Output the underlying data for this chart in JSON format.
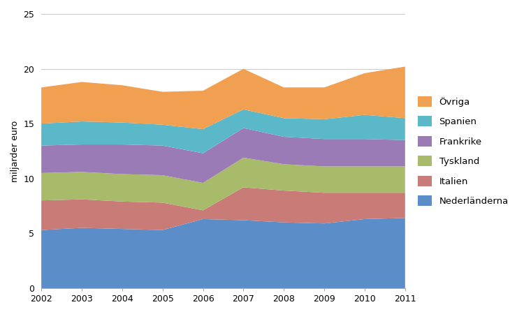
{
  "years": [
    2002,
    2003,
    2004,
    2005,
    2006,
    2007,
    2008,
    2009,
    2010,
    2011
  ],
  "series": {
    "Nederländerna": [
      5.3,
      5.5,
      5.4,
      5.3,
      6.3,
      6.2,
      6.0,
      5.9,
      6.3,
      6.4
    ],
    "Italien": [
      2.7,
      2.6,
      2.5,
      2.5,
      0.8,
      3.0,
      2.9,
      2.8,
      2.4,
      2.3
    ],
    "Tyskland": [
      2.5,
      2.5,
      2.5,
      2.5,
      2.5,
      2.7,
      2.4,
      2.4,
      2.4,
      2.4
    ],
    "Frankrike": [
      2.5,
      2.5,
      2.7,
      2.7,
      2.7,
      2.7,
      2.5,
      2.5,
      2.5,
      2.4
    ],
    "Spanien": [
      2.0,
      2.1,
      2.0,
      1.9,
      2.2,
      1.7,
      1.7,
      1.8,
      2.2,
      2.0
    ],
    "Övriga": [
      3.3,
      3.6,
      3.4,
      3.0,
      3.5,
      3.7,
      2.8,
      2.9,
      3.8,
      4.7
    ]
  },
  "colors": {
    "Nederländerna": "#5B8DC8",
    "Italien": "#C97B78",
    "Tyskland": "#A8BB6A",
    "Frankrike": "#9B7BB5",
    "Spanien": "#5BB8C8",
    "Övriga": "#F0A050"
  },
  "ylabel": "miljarder euro",
  "ylim": [
    0,
    25
  ],
  "yticks": [
    0,
    5,
    10,
    15,
    20,
    25
  ],
  "legend_order": [
    "Övriga",
    "Spanien",
    "Frankrike",
    "Tyskland",
    "Italien",
    "Nederländerna"
  ],
  "background_color": "#ffffff"
}
